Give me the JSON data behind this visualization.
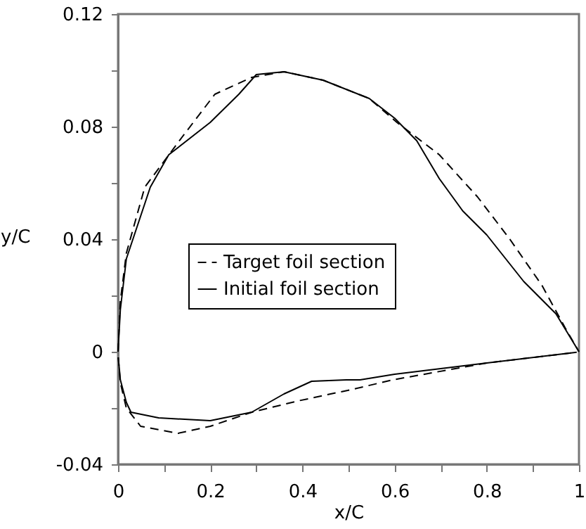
{
  "chart_data": {
    "type": "line",
    "xlabel": "x/C",
    "ylabel": "y/C",
    "xlim": [
      0,
      1
    ],
    "ylim": [
      -0.04,
      0.12
    ],
    "xticks": [
      0,
      {
        "value": 0.1,
        "label": null
      },
      {
        "value": 0.2,
        "label": "0.2"
      },
      {
        "value": 0.3,
        "label": null
      },
      {
        "value": 0.4,
        "label": "0.4"
      },
      {
        "value": 0.5,
        "label": null
      },
      {
        "value": 0.6,
        "label": "0.6"
      },
      {
        "value": 0.7,
        "label": null
      },
      {
        "value": 0.8,
        "label": "0.8"
      },
      {
        "value": 0.9,
        "label": null
      },
      1
    ],
    "yticks": [
      {
        "value": -0.04,
        "label": "-0.04"
      },
      {
        "value": -0.02,
        "label": null
      },
      0,
      {
        "value": 0.02,
        "label": null
      },
      {
        "value": 0.04,
        "label": "0.04"
      },
      {
        "value": 0.06,
        "label": null
      },
      {
        "value": 0.08,
        "label": "0.08"
      },
      {
        "value": 0.1,
        "label": null
      },
      {
        "value": 0.12,
        "label": "0.12"
      }
    ],
    "grid": false,
    "legend": "center",
    "marker": "none",
    "series": [
      {
        "name": "Target foil section",
        "color": "#000000",
        "line_style": "dashed",
        "x": [
          0,
          0.005,
          0.018,
          0.058,
          0.14,
          0.21,
          0.29,
          0.36,
          0.445,
          0.545,
          0.605,
          0.697,
          0.78,
          0.85,
          0.92,
          0.97,
          1
        ],
        "values": [
          0,
          0.018,
          0.035,
          0.0585,
          0.0765,
          0.0915,
          0.0975,
          0.0995,
          0.0965,
          0.09,
          0.0815,
          0.07,
          0.055,
          0.04,
          0.0235,
          0.0085,
          0
        ]
      },
      {
        "name": "Initial foil section",
        "color": "#000000",
        "line_style": "solid",
        "x": [
          0,
          0.005,
          0.018,
          0.07,
          0.11,
          0.2,
          0.262,
          0.3,
          0.36,
          0.445,
          0.545,
          0.6,
          0.648,
          0.697,
          0.748,
          0.8,
          0.88,
          0.95,
          1
        ],
        "values": [
          0,
          0.015,
          0.033,
          0.0585,
          0.07,
          0.0815,
          0.0915,
          0.0985,
          0.0995,
          0.0965,
          0.09,
          0.083,
          0.075,
          0.0615,
          0.05,
          0.0415,
          0.025,
          0.0135,
          0
        ]
      },
      {
        "color": "#000000",
        "line_style": "dashed",
        "x": [
          0.0005,
          0.005,
          0.018,
          0.049,
          0.13,
          0.2,
          0.29,
          0.39,
          0.505,
          0.596,
          0.8,
          0.995
        ],
        "values": [
          -0.002,
          -0.011,
          -0.02,
          -0.0265,
          -0.029,
          -0.0265,
          -0.0215,
          -0.0175,
          -0.0135,
          -0.01,
          -0.004,
          -0.0002
        ]
      },
      {
        "color": "#000000",
        "line_style": "solid",
        "x": [
          0.0005,
          0.005,
          0.018,
          0.028,
          0.088,
          0.2,
          0.29,
          0.36,
          0.42,
          0.495,
          0.525,
          0.6,
          0.8,
          0.995
        ],
        "values": [
          -0.002,
          -0.01,
          -0.018,
          -0.0215,
          -0.0235,
          -0.0245,
          -0.0215,
          -0.015,
          -0.0105,
          -0.01,
          -0.01,
          -0.008,
          -0.004,
          -0.0002
        ]
      }
    ]
  }
}
